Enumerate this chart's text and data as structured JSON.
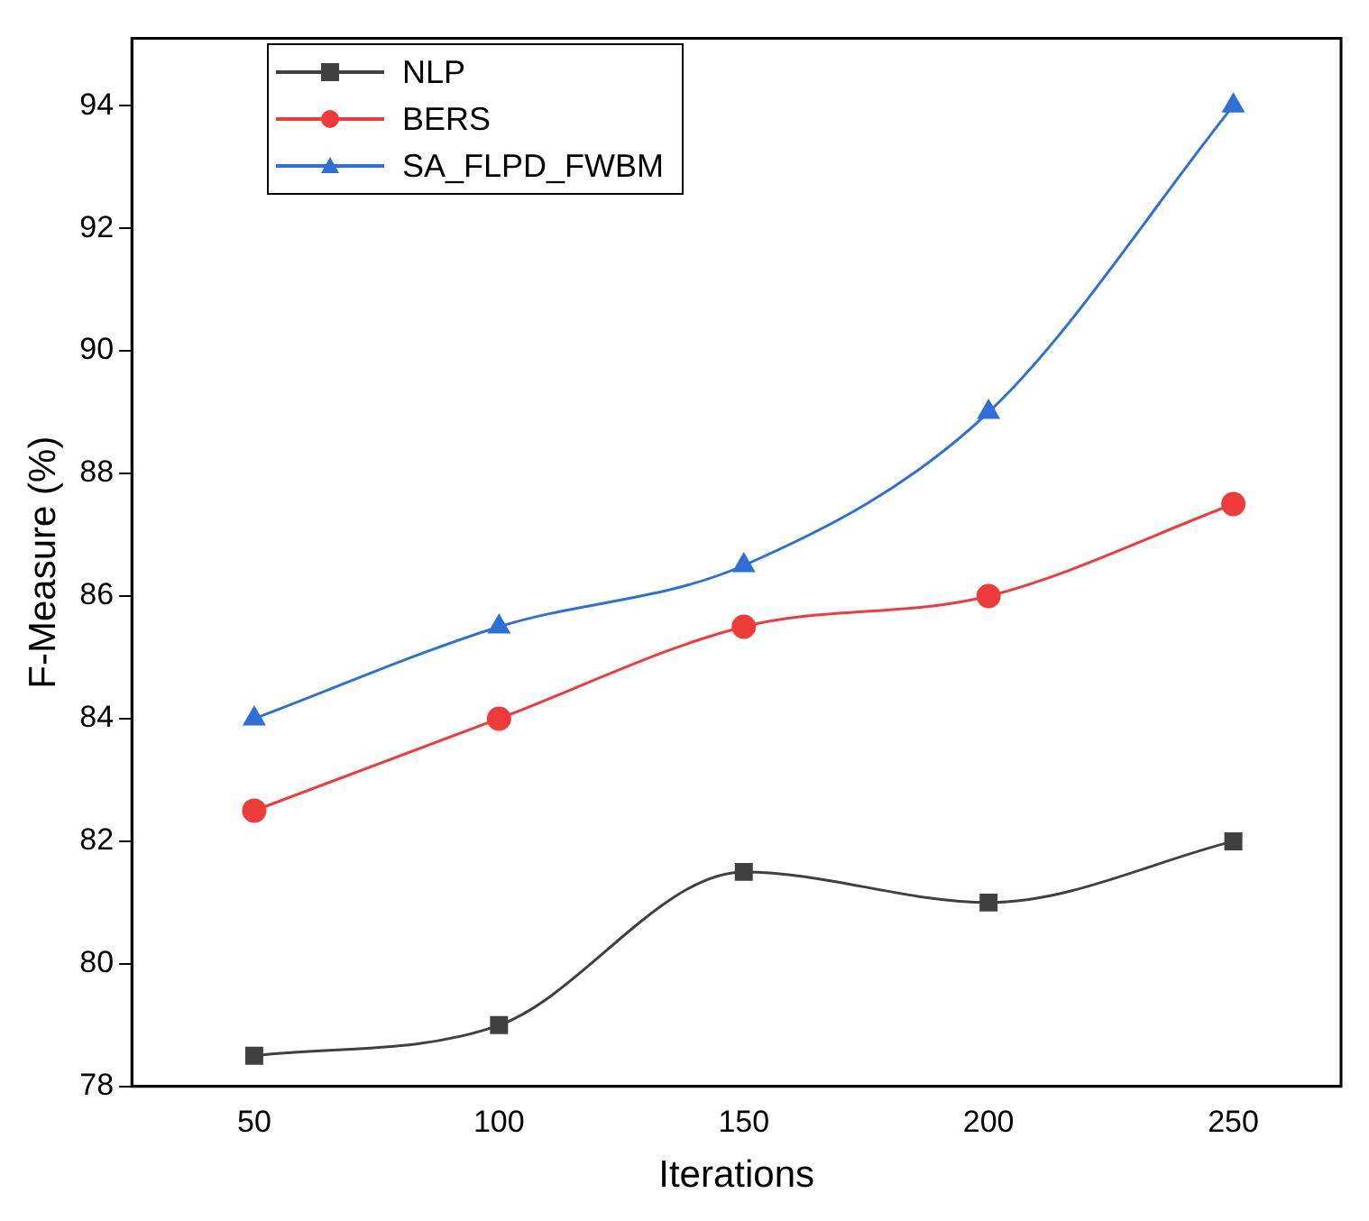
{
  "chart_data": {
    "type": "line",
    "xlabel": "Iterations",
    "ylabel": "F-Measure (%)",
    "x": [
      50,
      100,
      150,
      200,
      250
    ],
    "series": [
      {
        "name": "NLP",
        "color": "#404040",
        "marker": "square",
        "values": [
          78.5,
          79,
          81.5,
          81,
          82
        ]
      },
      {
        "name": "BERS",
        "color": "#ee3b3b",
        "marker": "circle",
        "values": [
          82.5,
          84,
          85.5,
          86,
          87.5
        ]
      },
      {
        "name": "SA_FLPD_FWBM",
        "color": "#2f6fd6",
        "marker": "triangle",
        "values": [
          84,
          85.5,
          86.5,
          89,
          94
        ]
      }
    ],
    "xlim": [
      25,
      272
    ],
    "xticks": [
      50,
      100,
      150,
      200,
      250
    ],
    "ylim": [
      78,
      95.1
    ],
    "yticks": [
      78,
      80,
      82,
      84,
      86,
      88,
      90,
      92,
      94
    ],
    "grid": false,
    "legend": "top left"
  }
}
